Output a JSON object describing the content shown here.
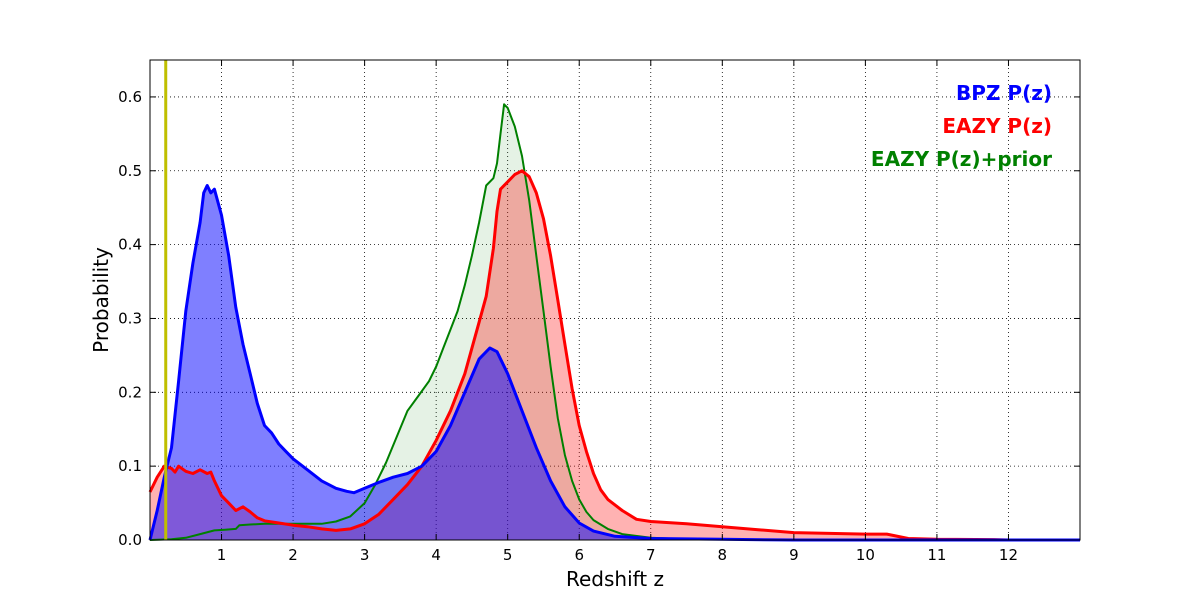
{
  "chart_data": {
    "type": "area",
    "title": "",
    "xlabel": "Redshift z",
    "ylabel": "Probability",
    "xlim": [
      0,
      13
    ],
    "ylim": [
      0,
      0.65
    ],
    "xticks": [
      1,
      2,
      3,
      4,
      5,
      6,
      7,
      8,
      9,
      10,
      11,
      12
    ],
    "xtick_labels": [
      "1",
      "2",
      "3",
      "4",
      "5",
      "6",
      "7",
      "8",
      "9",
      "10",
      "11",
      "12"
    ],
    "yticks": [
      0.0,
      0.1,
      0.2,
      0.3,
      0.4,
      0.5,
      0.6
    ],
    "ytick_labels": [
      "0.0",
      "0.1",
      "0.2",
      "0.3",
      "0.4",
      "0.5",
      "0.6"
    ],
    "grid": true,
    "legend_position": "top-right",
    "vertical_line": {
      "x": 0.22,
      "color": "#bfbf00"
    },
    "series": [
      {
        "name": "EAZY P(z)+prior",
        "color": "#008000",
        "fill_color": "#008000",
        "fill_opacity": 0.1,
        "points": [
          [
            0,
            0
          ],
          [
            0.3,
            0.001
          ],
          [
            0.5,
            0.003
          ],
          [
            0.7,
            0.008
          ],
          [
            0.9,
            0.013
          ],
          [
            1.05,
            0.014
          ],
          [
            1.2,
            0.015
          ],
          [
            1.25,
            0.02
          ],
          [
            1.4,
            0.021
          ],
          [
            1.6,
            0.022
          ],
          [
            1.8,
            0.022
          ],
          [
            2.0,
            0.022
          ],
          [
            2.2,
            0.022
          ],
          [
            2.4,
            0.022
          ],
          [
            2.6,
            0.025
          ],
          [
            2.8,
            0.032
          ],
          [
            3.0,
            0.05
          ],
          [
            3.15,
            0.075
          ],
          [
            3.3,
            0.105
          ],
          [
            3.45,
            0.14
          ],
          [
            3.6,
            0.175
          ],
          [
            3.75,
            0.195
          ],
          [
            3.9,
            0.215
          ],
          [
            4.0,
            0.235
          ],
          [
            4.1,
            0.26
          ],
          [
            4.2,
            0.285
          ],
          [
            4.3,
            0.31
          ],
          [
            4.4,
            0.345
          ],
          [
            4.5,
            0.385
          ],
          [
            4.6,
            0.43
          ],
          [
            4.7,
            0.48
          ],
          [
            4.8,
            0.49
          ],
          [
            4.85,
            0.51
          ],
          [
            4.9,
            0.55
          ],
          [
            4.95,
            0.59
          ],
          [
            5.0,
            0.585
          ],
          [
            5.1,
            0.56
          ],
          [
            5.2,
            0.52
          ],
          [
            5.3,
            0.46
          ],
          [
            5.4,
            0.385
          ],
          [
            5.5,
            0.31
          ],
          [
            5.6,
            0.235
          ],
          [
            5.7,
            0.165
          ],
          [
            5.8,
            0.115
          ],
          [
            5.9,
            0.08
          ],
          [
            6.0,
            0.055
          ],
          [
            6.1,
            0.038
          ],
          [
            6.2,
            0.027
          ],
          [
            6.4,
            0.015
          ],
          [
            6.6,
            0.008
          ],
          [
            7.0,
            0.003
          ],
          [
            7.5,
            0.001
          ],
          [
            9.0,
            0
          ],
          [
            12.0,
            0
          ],
          [
            13.0,
            0
          ]
        ]
      },
      {
        "name": "EAZY P(z)",
        "color": "#ff0000",
        "fill_color": "#ff0000",
        "fill_opacity": 0.3,
        "points": [
          [
            0,
            0.065
          ],
          [
            0.1,
            0.085
          ],
          [
            0.2,
            0.1
          ],
          [
            0.3,
            0.097
          ],
          [
            0.35,
            0.092
          ],
          [
            0.4,
            0.1
          ],
          [
            0.5,
            0.093
          ],
          [
            0.6,
            0.09
          ],
          [
            0.7,
            0.095
          ],
          [
            0.8,
            0.09
          ],
          [
            0.85,
            0.092
          ],
          [
            0.9,
            0.08
          ],
          [
            1.0,
            0.06
          ],
          [
            1.1,
            0.05
          ],
          [
            1.2,
            0.04
          ],
          [
            1.3,
            0.045
          ],
          [
            1.4,
            0.038
          ],
          [
            1.5,
            0.03
          ],
          [
            1.6,
            0.026
          ],
          [
            1.8,
            0.023
          ],
          [
            2.0,
            0.02
          ],
          [
            2.2,
            0.018
          ],
          [
            2.4,
            0.015
          ],
          [
            2.6,
            0.013
          ],
          [
            2.8,
            0.015
          ],
          [
            3.0,
            0.022
          ],
          [
            3.2,
            0.035
          ],
          [
            3.4,
            0.055
          ],
          [
            3.6,
            0.075
          ],
          [
            3.8,
            0.1
          ],
          [
            4.0,
            0.135
          ],
          [
            4.2,
            0.175
          ],
          [
            4.4,
            0.225
          ],
          [
            4.6,
            0.295
          ],
          [
            4.7,
            0.33
          ],
          [
            4.8,
            0.395
          ],
          [
            4.85,
            0.445
          ],
          [
            4.9,
            0.475
          ],
          [
            5.0,
            0.485
          ],
          [
            5.1,
            0.495
          ],
          [
            5.2,
            0.5
          ],
          [
            5.3,
            0.492
          ],
          [
            5.4,
            0.47
          ],
          [
            5.5,
            0.435
          ],
          [
            5.6,
            0.385
          ],
          [
            5.7,
            0.325
          ],
          [
            5.8,
            0.265
          ],
          [
            5.9,
            0.205
          ],
          [
            6.0,
            0.155
          ],
          [
            6.1,
            0.12
          ],
          [
            6.2,
            0.09
          ],
          [
            6.3,
            0.068
          ],
          [
            6.4,
            0.055
          ],
          [
            6.6,
            0.04
          ],
          [
            6.8,
            0.028
          ],
          [
            7.0,
            0.025
          ],
          [
            7.5,
            0.022
          ],
          [
            8.0,
            0.018
          ],
          [
            8.5,
            0.014
          ],
          [
            9.0,
            0.01
          ],
          [
            9.5,
            0.009
          ],
          [
            10.0,
            0.008
          ],
          [
            10.3,
            0.008
          ],
          [
            10.6,
            0.002
          ],
          [
            11.0,
            0.001
          ],
          [
            11.8,
            0.0005
          ],
          [
            12.0,
            0
          ],
          [
            13.0,
            0
          ]
        ]
      },
      {
        "name": "BPZ P(z)",
        "color": "#0000ff",
        "fill_color": "#0000ff",
        "fill_opacity": 0.5,
        "points": [
          [
            0,
            0
          ],
          [
            0.1,
            0.04
          ],
          [
            0.2,
            0.085
          ],
          [
            0.3,
            0.125
          ],
          [
            0.4,
            0.215
          ],
          [
            0.5,
            0.31
          ],
          [
            0.6,
            0.375
          ],
          [
            0.7,
            0.43
          ],
          [
            0.75,
            0.47
          ],
          [
            0.8,
            0.48
          ],
          [
            0.85,
            0.47
          ],
          [
            0.9,
            0.475
          ],
          [
            1.0,
            0.44
          ],
          [
            1.1,
            0.385
          ],
          [
            1.2,
            0.315
          ],
          [
            1.3,
            0.265
          ],
          [
            1.4,
            0.225
          ],
          [
            1.5,
            0.185
          ],
          [
            1.6,
            0.155
          ],
          [
            1.7,
            0.145
          ],
          [
            1.8,
            0.13
          ],
          [
            1.9,
            0.12
          ],
          [
            2.0,
            0.11
          ],
          [
            2.2,
            0.095
          ],
          [
            2.4,
            0.08
          ],
          [
            2.6,
            0.07
          ],
          [
            2.75,
            0.066
          ],
          [
            2.85,
            0.064
          ],
          [
            3.0,
            0.07
          ],
          [
            3.2,
            0.078
          ],
          [
            3.4,
            0.085
          ],
          [
            3.6,
            0.09
          ],
          [
            3.8,
            0.1
          ],
          [
            4.0,
            0.12
          ],
          [
            4.2,
            0.155
          ],
          [
            4.4,
            0.2
          ],
          [
            4.6,
            0.245
          ],
          [
            4.75,
            0.26
          ],
          [
            4.85,
            0.255
          ],
          [
            5.0,
            0.225
          ],
          [
            5.2,
            0.175
          ],
          [
            5.4,
            0.125
          ],
          [
            5.6,
            0.08
          ],
          [
            5.8,
            0.045
          ],
          [
            6.0,
            0.023
          ],
          [
            6.2,
            0.012
          ],
          [
            6.5,
            0.005
          ],
          [
            7.0,
            0.002
          ],
          [
            8.0,
            0.001
          ],
          [
            9.0,
            0
          ],
          [
            13.0,
            0
          ]
        ]
      }
    ]
  }
}
